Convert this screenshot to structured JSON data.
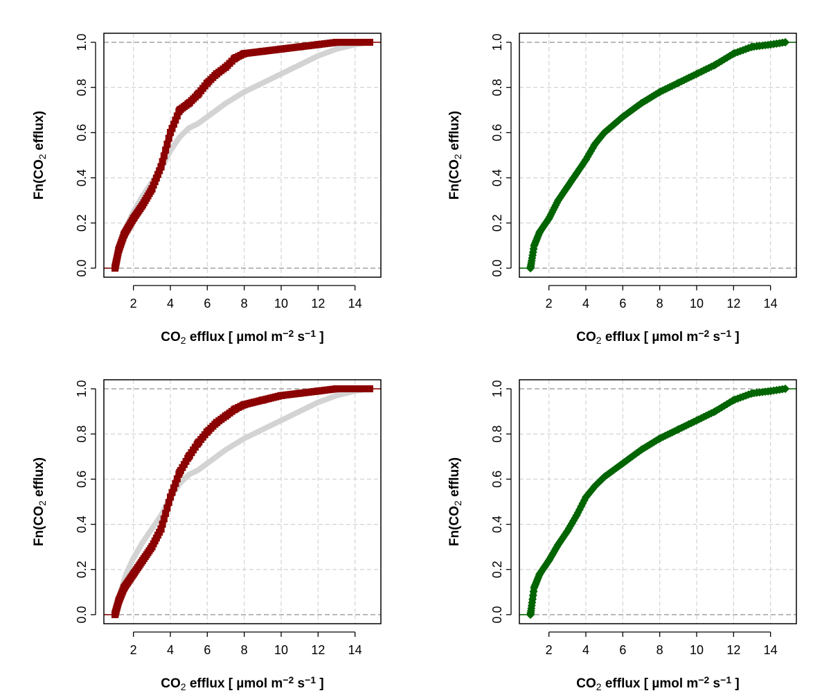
{
  "chart_data": [
    {
      "type": "line",
      "panel": "top-left",
      "xlabel": {
        "pre": "CO",
        "sub": "2",
        "mid": " efflux [ µmol m",
        "sup1": "−2",
        "mid2": " s",
        "sup2": "−1",
        "post": " ]"
      },
      "ylabel": {
        "pre": "Fn(CO",
        "sub": "2",
        "post": " efflux)"
      },
      "xlim": [
        0.4,
        15.4
      ],
      "ylim": [
        -0.04,
        1.04
      ],
      "xticks": [
        "2",
        "4",
        "6",
        "8",
        "10",
        "12",
        "14"
      ],
      "yticks": [
        "0.0",
        "0.2",
        "0.4",
        "0.6",
        "0.8",
        "1.0"
      ],
      "grid": true,
      "reference_lines": [
        0,
        1
      ],
      "series": [
        {
          "role": "reference",
          "color": "#d3d3d3",
          "x": [
            1.0,
            1.3,
            1.6,
            2.0,
            2.5,
            3.0,
            3.5,
            4.0,
            4.5,
            5.0,
            5.5,
            6.0,
            7.0,
            8.0,
            9.0,
            10.0,
            11.0,
            12.0,
            13.0,
            14.0,
            14.8
          ],
          "y": [
            0.0,
            0.1,
            0.18,
            0.25,
            0.32,
            0.38,
            0.44,
            0.52,
            0.58,
            0.62,
            0.64,
            0.67,
            0.73,
            0.78,
            0.82,
            0.86,
            0.9,
            0.94,
            0.97,
            0.99,
            1.0
          ]
        },
        {
          "role": "sample",
          "color": "#8b0000",
          "marker": "square",
          "x": [
            1.0,
            1.2,
            1.5,
            2.0,
            2.5,
            3.0,
            3.5,
            4.0,
            4.5,
            5.0,
            5.5,
            6.0,
            6.5,
            7.0,
            7.5,
            8.0,
            9.0,
            10.0,
            11.0,
            12.0,
            13.0,
            14.8
          ],
          "y": [
            0.0,
            0.08,
            0.15,
            0.22,
            0.28,
            0.35,
            0.45,
            0.6,
            0.7,
            0.73,
            0.77,
            0.82,
            0.86,
            0.89,
            0.93,
            0.95,
            0.96,
            0.97,
            0.98,
            0.99,
            1.0,
            1.0
          ]
        }
      ]
    },
    {
      "type": "line",
      "panel": "top-right",
      "xlabel": {
        "pre": "CO",
        "sub": "2",
        "mid": " efflux [ µmol m",
        "sup1": "−2",
        "mid2": " s",
        "sup2": "−1",
        "post": " ]"
      },
      "ylabel": {
        "pre": "Fn(CO",
        "sub": "2",
        "post": " efflux)"
      },
      "xlim": [
        0.4,
        15.4
      ],
      "ylim": [
        -0.04,
        1.04
      ],
      "xticks": [
        "2",
        "4",
        "6",
        "8",
        "10",
        "12",
        "14"
      ],
      "yticks": [
        "0.0",
        "0.2",
        "0.4",
        "0.6",
        "0.8",
        "1.0"
      ],
      "grid": true,
      "reference_lines": [
        0,
        1
      ],
      "series": [
        {
          "role": "reference",
          "color": "#d3d3d3",
          "x": [
            1.0,
            1.2,
            1.5,
            2.0,
            2.5,
            3.0,
            3.5,
            4.0,
            4.5,
            5.0,
            6.0,
            7.0,
            8.0,
            9.0,
            10.0,
            11.0,
            12.0,
            13.0,
            14.0,
            14.8
          ],
          "y": [
            0.0,
            0.1,
            0.16,
            0.22,
            0.3,
            0.36,
            0.42,
            0.48,
            0.55,
            0.6,
            0.67,
            0.73,
            0.78,
            0.82,
            0.86,
            0.9,
            0.95,
            0.98,
            0.99,
            1.0
          ]
        },
        {
          "role": "sample",
          "color": "#006400",
          "marker": "diamond",
          "x": [
            1.0,
            1.2,
            1.5,
            2.0,
            2.5,
            3.0,
            3.5,
            4.0,
            4.5,
            5.0,
            6.0,
            7.0,
            8.0,
            9.0,
            10.0,
            11.0,
            12.0,
            13.0,
            14.0,
            14.8
          ],
          "y": [
            0.0,
            0.1,
            0.16,
            0.22,
            0.3,
            0.36,
            0.42,
            0.48,
            0.55,
            0.6,
            0.67,
            0.73,
            0.78,
            0.82,
            0.86,
            0.9,
            0.95,
            0.98,
            0.99,
            1.0
          ]
        }
      ]
    },
    {
      "type": "line",
      "panel": "bottom-left",
      "xlabel": {
        "pre": "CO",
        "sub": "2",
        "mid": " efflux [ µmol m",
        "sup1": "−2",
        "mid2": " s",
        "sup2": "−1",
        "post": " ]"
      },
      "ylabel": {
        "pre": "Fn(CO",
        "sub": "2",
        "post": " efflux)"
      },
      "xlim": [
        0.4,
        15.4
      ],
      "ylim": [
        -0.04,
        1.04
      ],
      "xticks": [
        "2",
        "4",
        "6",
        "8",
        "10",
        "12",
        "14"
      ],
      "yticks": [
        "0.0",
        "0.2",
        "0.4",
        "0.6",
        "0.8",
        "1.0"
      ],
      "grid": true,
      "reference_lines": [
        0,
        1
      ],
      "series": [
        {
          "role": "reference",
          "color": "#d3d3d3",
          "x": [
            1.0,
            1.3,
            1.6,
            2.0,
            2.5,
            3.0,
            3.5,
            4.0,
            4.5,
            5.0,
            5.5,
            6.0,
            7.0,
            8.0,
            9.0,
            10.0,
            11.0,
            12.0,
            13.0,
            14.0,
            14.8
          ],
          "y": [
            0.0,
            0.1,
            0.18,
            0.25,
            0.32,
            0.38,
            0.44,
            0.52,
            0.58,
            0.62,
            0.64,
            0.67,
            0.73,
            0.78,
            0.82,
            0.86,
            0.9,
            0.94,
            0.97,
            0.99,
            1.0
          ]
        },
        {
          "role": "sample",
          "color": "#8b0000",
          "marker": "square",
          "x": [
            1.0,
            1.2,
            1.5,
            2.0,
            2.5,
            3.0,
            3.5,
            4.0,
            4.5,
            5.0,
            5.5,
            6.0,
            6.5,
            7.0,
            7.5,
            8.0,
            9.0,
            10.0,
            11.0,
            12.0,
            13.0,
            14.8
          ],
          "y": [
            0.0,
            0.06,
            0.12,
            0.18,
            0.24,
            0.3,
            0.38,
            0.52,
            0.63,
            0.7,
            0.76,
            0.81,
            0.85,
            0.88,
            0.91,
            0.93,
            0.95,
            0.97,
            0.98,
            0.99,
            1.0,
            1.0
          ]
        }
      ]
    },
    {
      "type": "line",
      "panel": "bottom-right",
      "xlabel": {
        "pre": "CO",
        "sub": "2",
        "mid": " efflux [ µmol m",
        "sup1": "−2",
        "mid2": " s",
        "sup2": "−1",
        "post": " ]"
      },
      "ylabel": {
        "pre": "Fn(CO",
        "sub": "2",
        "post": " efflux)"
      },
      "xlim": [
        0.4,
        15.4
      ],
      "ylim": [
        -0.04,
        1.04
      ],
      "xticks": [
        "2",
        "4",
        "6",
        "8",
        "10",
        "12",
        "14"
      ],
      "yticks": [
        "0.0",
        "0.2",
        "0.4",
        "0.6",
        "0.8",
        "1.0"
      ],
      "grid": true,
      "reference_lines": [
        0,
        1
      ],
      "series": [
        {
          "role": "reference",
          "color": "#d3d3d3",
          "x": [
            1.0,
            1.2,
            1.5,
            2.0,
            2.5,
            3.0,
            3.5,
            4.0,
            4.5,
            5.0,
            6.0,
            7.0,
            8.0,
            9.0,
            10.0,
            11.0,
            12.0,
            13.0,
            14.0,
            14.8
          ],
          "y": [
            0.0,
            0.12,
            0.18,
            0.24,
            0.31,
            0.37,
            0.44,
            0.52,
            0.57,
            0.61,
            0.67,
            0.73,
            0.78,
            0.82,
            0.86,
            0.9,
            0.95,
            0.98,
            0.99,
            1.0
          ]
        },
        {
          "role": "sample",
          "color": "#006400",
          "marker": "diamond",
          "x": [
            1.0,
            1.2,
            1.5,
            2.0,
            2.5,
            3.0,
            3.5,
            4.0,
            4.5,
            5.0,
            6.0,
            7.0,
            8.0,
            9.0,
            10.0,
            11.0,
            12.0,
            13.0,
            14.0,
            14.8
          ],
          "y": [
            0.0,
            0.12,
            0.18,
            0.24,
            0.31,
            0.37,
            0.44,
            0.52,
            0.57,
            0.61,
            0.67,
            0.73,
            0.78,
            0.82,
            0.86,
            0.9,
            0.95,
            0.98,
            0.99,
            1.0
          ]
        }
      ]
    }
  ]
}
